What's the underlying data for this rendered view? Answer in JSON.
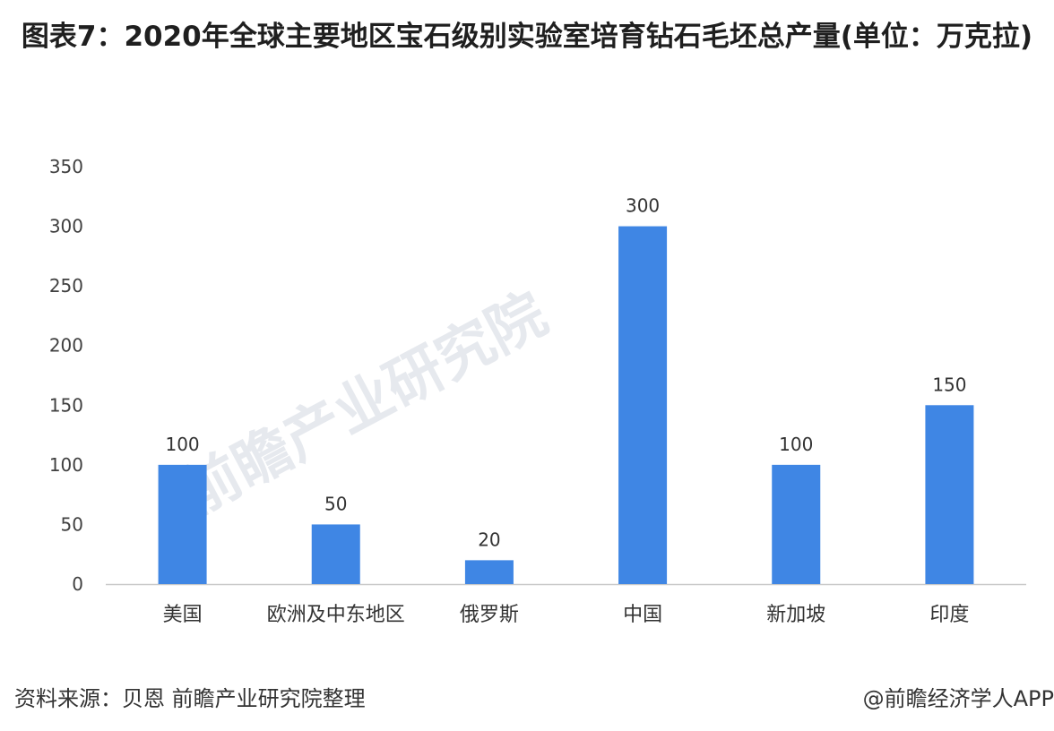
{
  "title": "图表7：2020年全球主要地区宝石级别实验室培育钻石毛坯总产量(单位：万克拉)",
  "watermark_text": "前瞻产业研究院",
  "chart_data": {
    "type": "bar",
    "categories": [
      "美国",
      "欧洲及中东地区",
      "俄罗斯",
      "中国",
      "新加坡",
      "印度"
    ],
    "values": [
      100,
      50,
      20,
      300,
      100,
      150
    ],
    "title": "",
    "xlabel": "",
    "ylabel": "",
    "ylim": [
      0,
      350
    ],
    "yticks": [
      0,
      50,
      100,
      150,
      200,
      250,
      300,
      350
    ],
    "grid": false,
    "data_labels": true,
    "bar_color": "#3f86e4"
  },
  "footer": {
    "source": "资料来源：贝恩 前瞻产业研究院整理",
    "brand": "@前瞻经济学人APP"
  }
}
